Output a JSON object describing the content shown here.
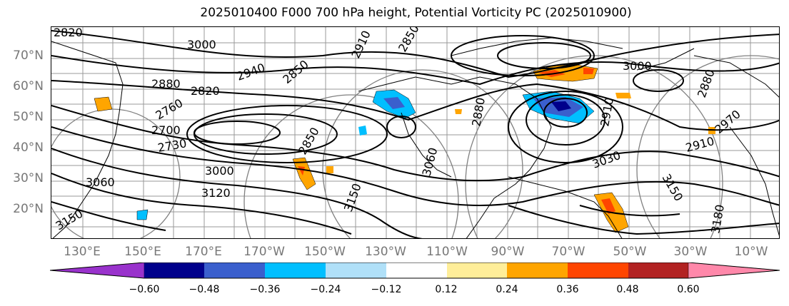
{
  "title": "2025010400 F000 700 hPa height, Potential Vorticity PC (2025010900)",
  "lat_labels": [
    "70°N",
    "60°N",
    "50°N",
    "40°N",
    "30°N",
    "20°N"
  ],
  "lon_labels": [
    "130°E",
    "150°E",
    "170°E",
    "170°W",
    "150°W",
    "130°W",
    "110°W",
    "90°W",
    "70°W",
    "50°W",
    "30°W",
    "10°W"
  ],
  "contour_labels": [
    "2820",
    "3000",
    "2910",
    "2850",
    "2940",
    "2880",
    "2820",
    "2850",
    "2760",
    "2700",
    "2730",
    "3000",
    "3060",
    "3120",
    "3150",
    "2850",
    "2880",
    "2910",
    "3000",
    "3030",
    "3150",
    "2910",
    "2970",
    "3150",
    "3060",
    "3180",
    "2880"
  ],
  "colorbar": {
    "ticks": [
      "−0.60",
      "−0.48",
      "−0.36",
      "−0.24",
      "−0.12",
      "0.12",
      "0.24",
      "0.36",
      "0.48",
      "0.60"
    ],
    "colors": [
      "#9932cc",
      "#00008b",
      "#3a5fcd",
      "#00bfff",
      "#b0e0f8",
      "#ffffff",
      "#ffee99",
      "#ffa500",
      "#ff4500",
      "#b22222",
      "#ff88aa"
    ]
  }
}
